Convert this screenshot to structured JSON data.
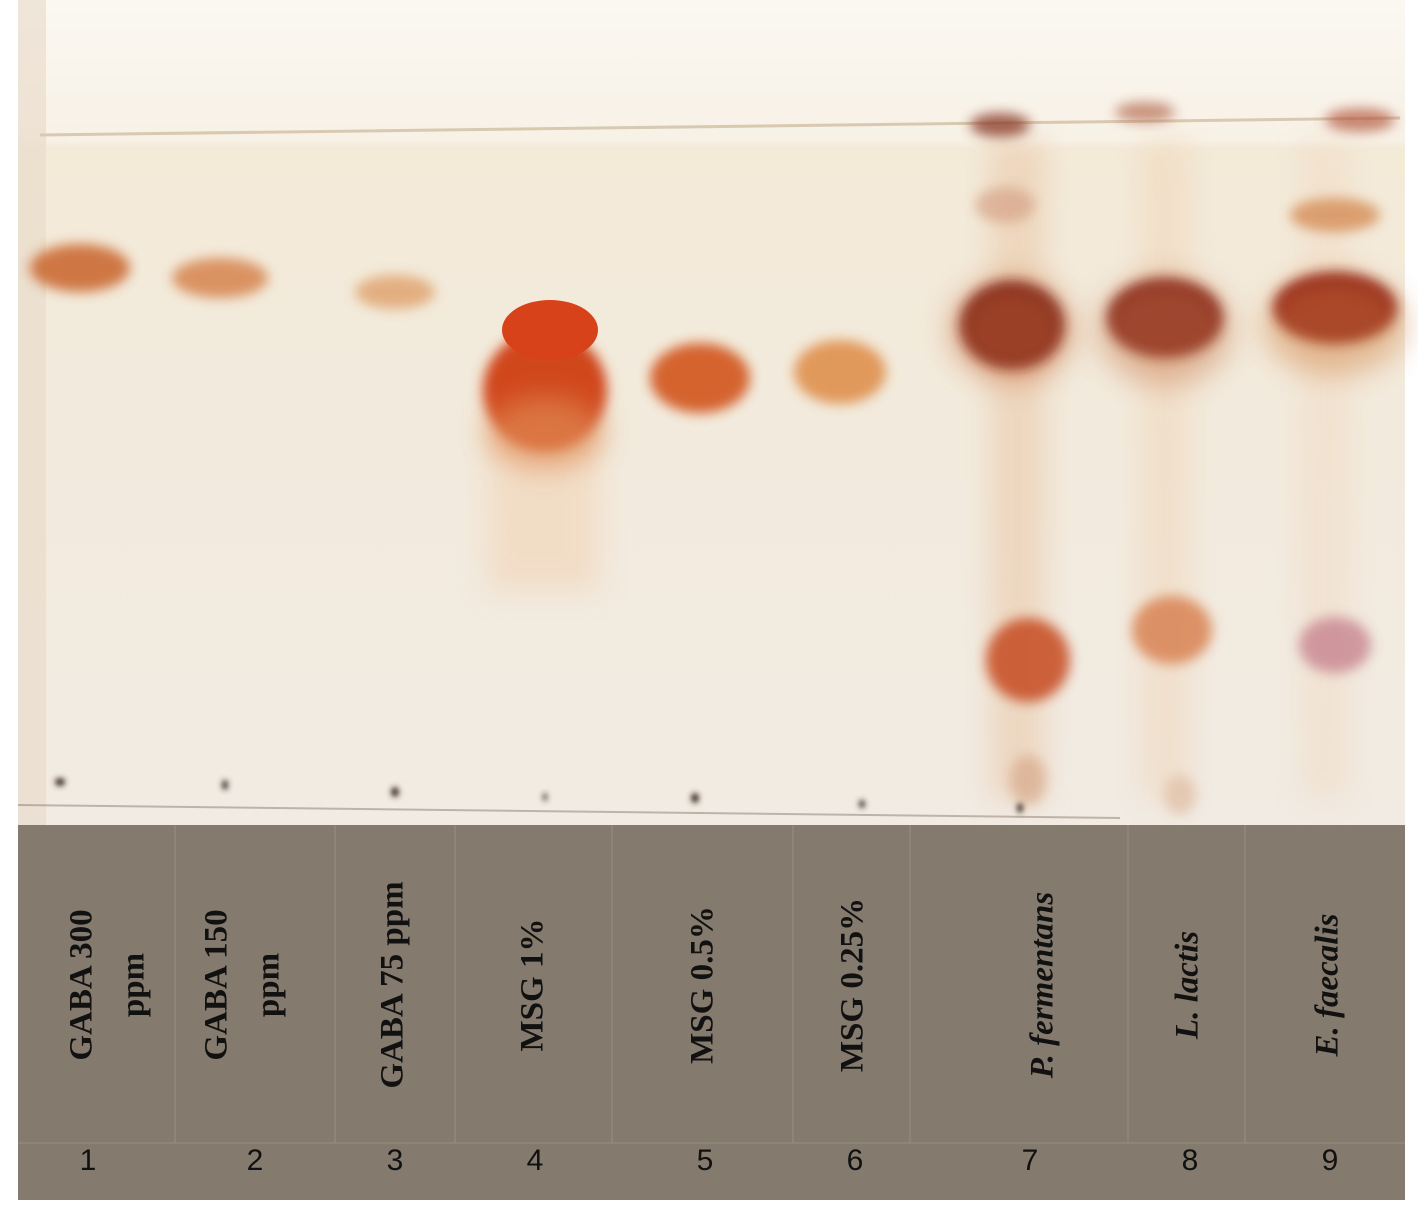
{
  "lanes": [
    {
      "label_lines": [
        "GABA 300",
        "ppm"
      ],
      "italic": false,
      "number": "1"
    },
    {
      "label_lines": [
        "GABA 150",
        "ppm"
      ],
      "italic": false,
      "number": "2"
    },
    {
      "label_lines": [
        "GABA 75 ppm"
      ],
      "italic": false,
      "number": "3"
    },
    {
      "label_lines": [
        "MSG 1%"
      ],
      "italic": false,
      "number": "4"
    },
    {
      "label_lines": [
        "MSG 0.5%"
      ],
      "italic": false,
      "number": "5"
    },
    {
      "label_lines": [
        "MSG 0.25%"
      ],
      "italic": false,
      "number": "6"
    },
    {
      "label_lines": [
        "P. fermentans"
      ],
      "italic": true,
      "number": "7"
    },
    {
      "label_lines": [
        "L. lactis"
      ],
      "italic": true,
      "number": "8"
    },
    {
      "label_lines": [
        "E. faecalis"
      ],
      "italic": true,
      "number": "9"
    }
  ]
}
